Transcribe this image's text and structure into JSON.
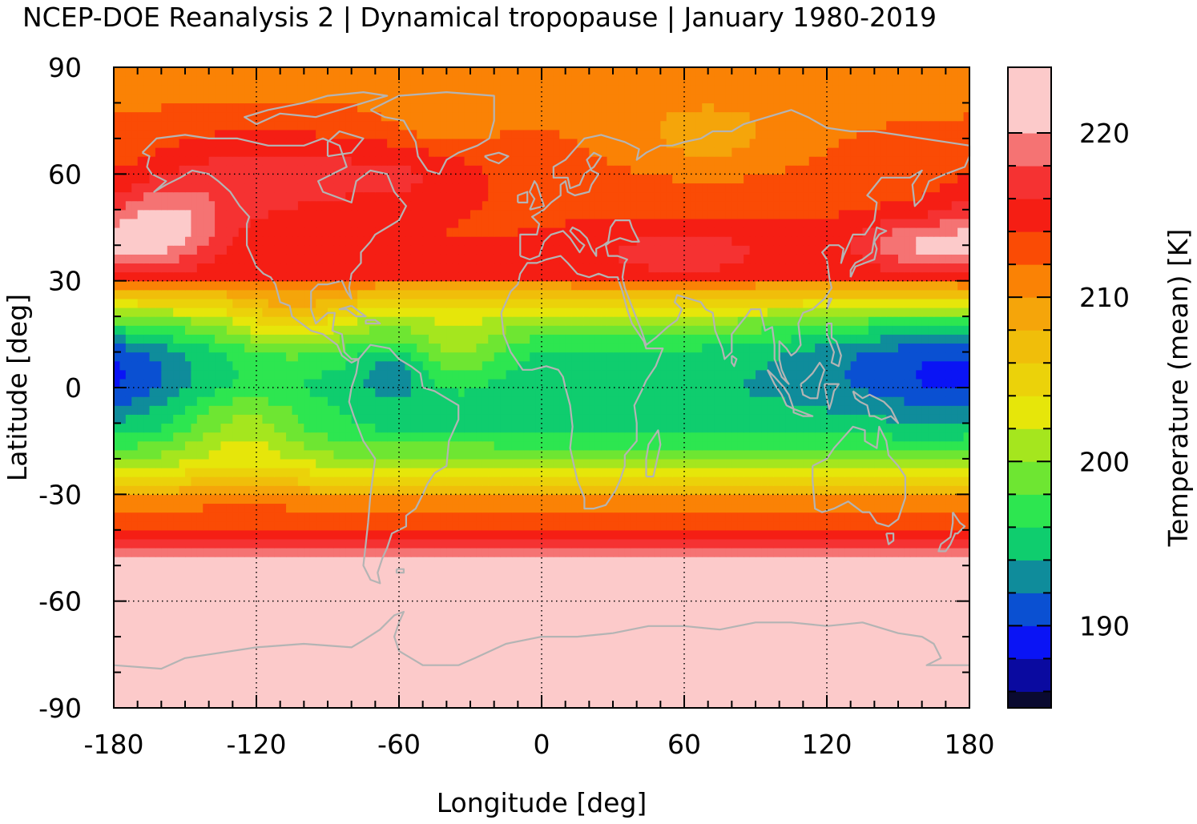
{
  "chart_data": {
    "type": "heatmap",
    "title": "NCEP-DOE Reanalysis 2 | Dynamical tropopause | January 1980-2019",
    "xlabel": "Longitude [deg]",
    "ylabel": "Latitude [deg]",
    "xlim": [
      -180,
      180
    ],
    "ylim": [
      -90,
      90
    ],
    "x_ticks": [
      -180,
      -120,
      -60,
      0,
      60,
      120,
      180
    ],
    "y_ticks": [
      90,
      60,
      30,
      0,
      -30,
      -60,
      -90
    ],
    "grid": "dotted",
    "colorbar": {
      "label": "Temperature (mean) [K]",
      "range": [
        185,
        224
      ],
      "ticks": [
        190,
        200,
        210,
        220
      ],
      "levels": [
        {
          "from": 185,
          "to": 186,
          "color": "#0a0a30"
        },
        {
          "from": 186,
          "to": 188,
          "color": "#0a0aa0"
        },
        {
          "from": 188,
          "to": 190,
          "color": "#0a14f5"
        },
        {
          "from": 190,
          "to": 192,
          "color": "#0a50d2"
        },
        {
          "from": 192,
          "to": 194,
          "color": "#0f8c9b"
        },
        {
          "from": 194,
          "to": 196,
          "color": "#0fcd6e"
        },
        {
          "from": 196,
          "to": 198,
          "color": "#2de650"
        },
        {
          "from": 198,
          "to": 200,
          "color": "#6ee632"
        },
        {
          "from": 200,
          "to": 202,
          "color": "#a5e61e"
        },
        {
          "from": 202,
          "to": 204,
          "color": "#e6e60a"
        },
        {
          "from": 204,
          "to": 206,
          "color": "#ebd20a"
        },
        {
          "from": 206,
          "to": 208,
          "color": "#f0be0a"
        },
        {
          "from": 208,
          "to": 210,
          "color": "#f5a50a"
        },
        {
          "from": 210,
          "to": 212,
          "color": "#fa8205"
        },
        {
          "from": 212,
          "to": 214,
          "color": "#fa4b05"
        },
        {
          "from": 214,
          "to": 216,
          "color": "#f51e14"
        },
        {
          "from": 216,
          "to": 218,
          "color": "#f53232"
        },
        {
          "from": 218,
          "to": 220,
          "color": "#f57373"
        },
        {
          "from": 220,
          "to": 224,
          "color": "#fccaca"
        }
      ]
    },
    "coastline_color": "#b4b4b4",
    "field": {
      "zonal_profile": [
        {
          "lat": -90,
          "value": 222
        },
        {
          "lat": -52,
          "value": 222
        },
        {
          "lat": -47,
          "value": 219
        },
        {
          "lat": -42,
          "value": 215
        },
        {
          "lat": -36,
          "value": 213
        },
        {
          "lat": -32,
          "value": 211
        },
        {
          "lat": -27,
          "value": 206
        },
        {
          "lat": -20,
          "value": 200
        },
        {
          "lat": -12,
          "value": 196
        },
        {
          "lat": 0,
          "value": 195
        },
        {
          "lat": 10,
          "value": 196
        },
        {
          "lat": 18,
          "value": 200
        },
        {
          "lat": 25,
          "value": 206
        },
        {
          "lat": 29,
          "value": 210
        },
        {
          "lat": 31,
          "value": 214
        },
        {
          "lat": 40,
          "value": 214
        },
        {
          "lat": 60,
          "value": 213
        },
        {
          "lat": 75,
          "value": 212
        },
        {
          "lat": 90,
          "value": 211
        }
      ],
      "anomalies": [
        {
          "lon": 150,
          "lat": 8,
          "value": -4,
          "width_lon": 55,
          "width_lat": 17
        },
        {
          "lon": -180,
          "lat": 4,
          "value": -3,
          "width_lon": 30,
          "width_lat": 12
        },
        {
          "lon": -62,
          "lat": 4,
          "value": -3,
          "width_lon": 14,
          "width_lat": 7
        },
        {
          "lon": 30,
          "lat": -2,
          "value": -1,
          "width_lon": 50,
          "width_lat": 14
        },
        {
          "lon": -125,
          "lat": -12,
          "value": 5,
          "width_lon": 28,
          "width_lat": 12
        },
        {
          "lon": -105,
          "lat": 18,
          "value": 5,
          "width_lon": 25,
          "width_lat": 10
        },
        {
          "lon": -35,
          "lat": 10,
          "value": 4,
          "width_lon": 20,
          "width_lat": 10
        },
        {
          "lon": -160,
          "lat": 45,
          "value": 7,
          "width_lon": 25,
          "width_lat": 12
        },
        {
          "lon": 160,
          "lat": 40,
          "value": 6,
          "width_lon": 28,
          "width_lat": 8
        },
        {
          "lon": -120,
          "lat": 60,
          "value": 4,
          "width_lon": 40,
          "width_lat": 14
        },
        {
          "lon": -60,
          "lat": 60,
          "value": 3,
          "width_lon": 35,
          "width_lat": 10
        },
        {
          "lon": 70,
          "lat": 70,
          "value": -3,
          "width_lon": 40,
          "width_lat": 12
        },
        {
          "lon": -40,
          "lat": 75,
          "value": -2,
          "width_lon": 20,
          "width_lat": 8
        },
        {
          "lon": 60,
          "lat": 38,
          "value": 3,
          "width_lon": 45,
          "width_lat": 8
        }
      ]
    }
  }
}
